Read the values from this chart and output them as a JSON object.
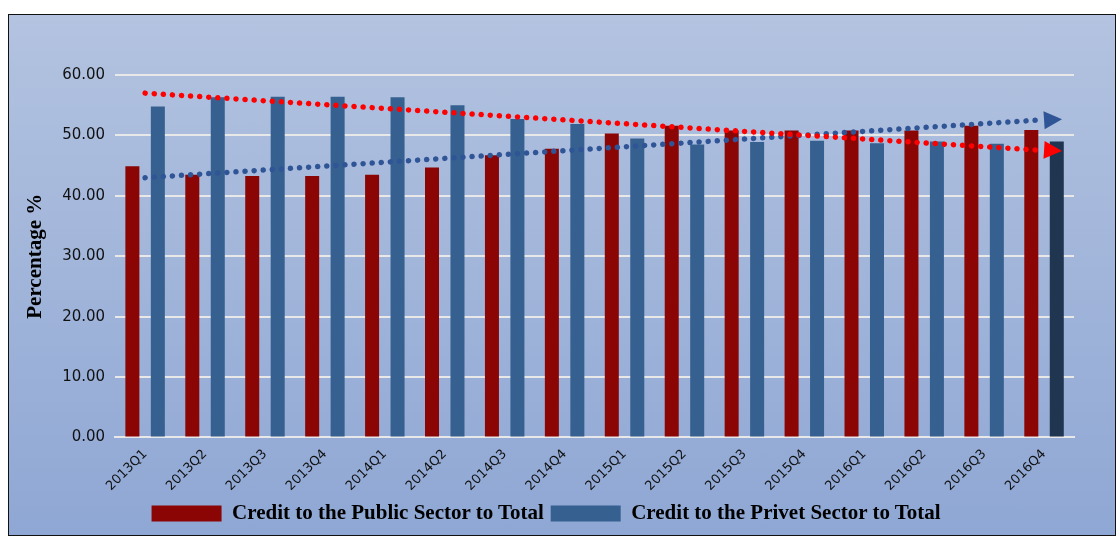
{
  "chart_data": {
    "type": "bar",
    "ylabel": "Percentage %",
    "categories": [
      "2013Q1",
      "2013Q2",
      "2013Q3",
      "2013Q4",
      "2014Q1",
      "2014Q2",
      "2014Q3",
      "2014Q4",
      "2015Q1",
      "2015Q2",
      "2015Q3",
      "2015Q4",
      "2016Q1",
      "2016Q2",
      "2016Q3",
      "2016Q4"
    ],
    "series": [
      {
        "name": "Credit to the Public Sector to Total",
        "color": "#8b0505",
        "values": [
          44.9,
          43.5,
          43.3,
          43.3,
          43.5,
          44.7,
          46.7,
          47.8,
          50.3,
          51.6,
          50.8,
          50.8,
          50.8,
          50.8,
          51.6,
          50.9
        ]
      },
      {
        "name": "Credit to the Privet Sector to Total",
        "color": "#36608f",
        "colors": [
          "#36608f",
          "#36608f",
          "#36608f",
          "#36608f",
          "#36608f",
          "#36608f",
          "#36608f",
          "#36608f",
          "#36608f",
          "#36608f",
          "#36608f",
          "#36608f",
          "#36608f",
          "#36608f",
          "#36608f",
          "#1f3550"
        ],
        "values": [
          54.8,
          56.3,
          56.4,
          56.4,
          56.3,
          55.0,
          52.7,
          51.9,
          49.5,
          48.5,
          48.9,
          49.1,
          48.7,
          49.0,
          48.6,
          49.0
        ]
      },
      {
        "type": "line",
        "color": "#ff0000",
        "x": [
          "2013Q1",
          "2016Q4"
        ],
        "values": [
          57.0,
          47.5
        ],
        "line_style": "dotted"
      },
      {
        "type": "line",
        "color": "#2f5597",
        "x": [
          "2013Q1",
          "2016Q4"
        ],
        "values": [
          43.0,
          52.6
        ],
        "line_style": "dotted"
      }
    ],
    "ylim": [
      0,
      60
    ],
    "yticks": [
      {
        "value": 0,
        "label": "0.00"
      },
      {
        "value": 10,
        "label": "10.00"
      },
      {
        "value": 20,
        "label": "20.00"
      },
      {
        "value": 30,
        "label": "30.00"
      },
      {
        "value": 40,
        "label": "40.00"
      },
      {
        "value": 50,
        "label": "50.00"
      },
      {
        "value": 60,
        "label": "60.00"
      }
    ],
    "grid": "y",
    "legend": "bottom"
  }
}
